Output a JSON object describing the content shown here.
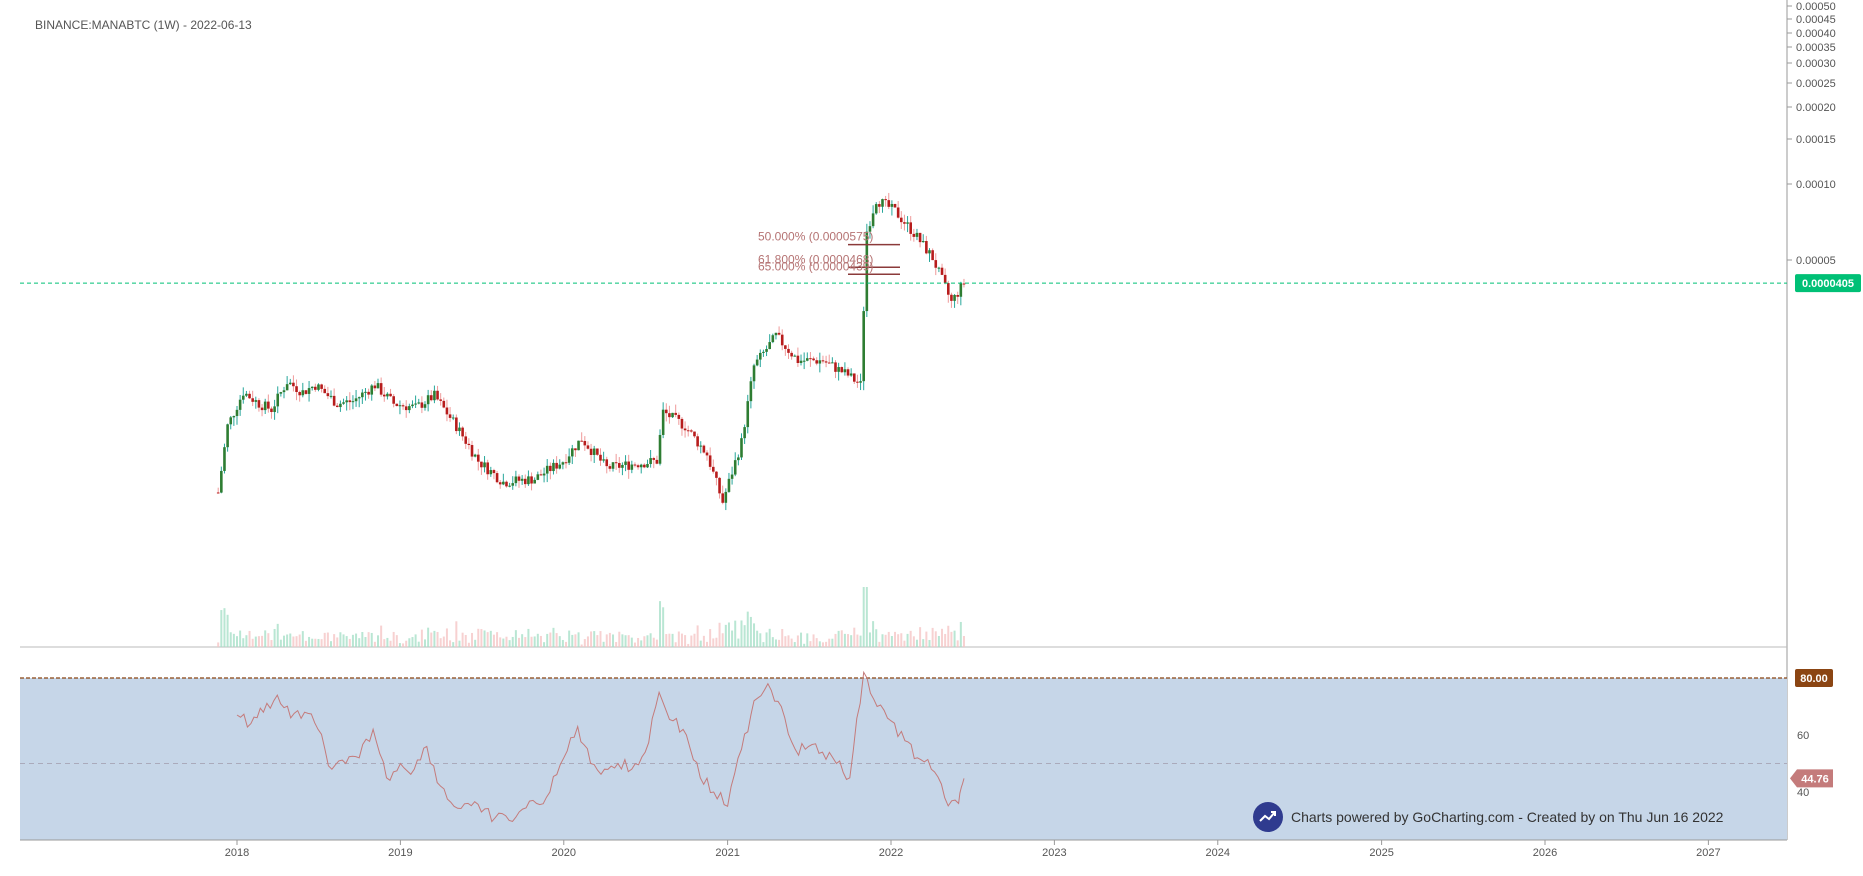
{
  "header": {
    "title": "BINANCE:MANABTC (1W) - 2022-06-13"
  },
  "watermark": {
    "text": "Charts powered by GoCharting.com - Created by  on Thu Jun 16 2022",
    "logo": "trend-up-icon"
  },
  "colors": {
    "up": "#26a69a",
    "upBody": "#2e7d32",
    "down": "#b71c1c",
    "wick_down": "#ef9a9a",
    "priceTag": "#00c076",
    "rsiZone": "#c6d6e8",
    "rsiLine": "#c47b7b",
    "ob": "#8b4513",
    "rsiTag": "#c47b7b"
  },
  "chart_data": [
    {
      "type": "candlestick",
      "title": "BINANCE:MANABTC (1W) - 2022-06-13",
      "xlabel": "",
      "ylabel": "",
      "scale": "log",
      "y_ticks": [
        "0.00050",
        "0.00045",
        "0.00040",
        "0.00035",
        "0.00030",
        "0.00025",
        "0.00020",
        "0.00015",
        "0.00010",
        "0.00005"
      ],
      "x_ticks": [
        "2018",
        "2019",
        "2020",
        "2021",
        "2022",
        "2023",
        "2024",
        "2025",
        "2026",
        "2027"
      ],
      "x_range": [
        "2017-06",
        "2027-06"
      ],
      "last_price": {
        "value": 4.05e-05,
        "label": "0.0000405"
      },
      "close_path": [
        [
          "2017-11-20",
          6e-06
        ],
        [
          "2017-12-11",
          1.1e-05
        ],
        [
          "2018-01-15",
          1.5e-05
        ],
        [
          "2018-02-19",
          1.35e-05
        ],
        [
          "2018-03-19",
          1.28e-05
        ],
        [
          "2018-04-23",
          1.65e-05
        ],
        [
          "2018-05-28",
          1.5e-05
        ],
        [
          "2018-06-25",
          1.6e-05
        ],
        [
          "2018-08-13",
          1.35e-05
        ],
        [
          "2018-09-17",
          1.38e-05
        ],
        [
          "2018-11-05",
          1.6e-05
        ],
        [
          "2018-12-17",
          1.35e-05
        ],
        [
          "2019-02-04",
          1.3e-05
        ],
        [
          "2019-03-18",
          1.45e-05
        ],
        [
          "2019-05-06",
          1.1e-05
        ],
        [
          "2019-06-24",
          8e-06
        ],
        [
          "2019-08-19",
          6.6e-06
        ],
        [
          "2019-10-28",
          6.8e-06
        ],
        [
          "2019-12-30",
          8e-06
        ],
        [
          "2020-02-10",
          9.8e-06
        ],
        [
          "2020-04-06",
          7.5e-06
        ],
        [
          "2020-06-08",
          7.8e-06
        ],
        [
          "2020-07-27",
          8e-06
        ],
        [
          "2020-08-10",
          1.25e-05
        ],
        [
          "2020-09-28",
          1.1e-05
        ],
        [
          "2020-11-16",
          8.5e-06
        ],
        [
          "2020-12-21",
          5.5e-06
        ],
        [
          "2021-02-01",
          9.5e-06
        ],
        [
          "2021-03-01",
          1.9e-05
        ],
        [
          "2021-04-19",
          2.5e-05
        ],
        [
          "2021-06-07",
          2e-05
        ],
        [
          "2021-08-02",
          2e-05
        ],
        [
          "2021-09-27",
          1.75e-05
        ],
        [
          "2021-10-25",
          1.6e-05
        ],
        [
          "2021-11-08",
          6.5e-05
        ],
        [
          "2021-11-29",
          8.7e-05
        ],
        [
          "2022-01-10",
          7.8e-05
        ],
        [
          "2022-02-21",
          6.4e-05
        ],
        [
          "2022-04-04",
          5.1e-05
        ],
        [
          "2022-05-16",
          3.4e-05
        ],
        [
          "2022-06-13",
          4.05e-05
        ]
      ],
      "volume": "shown",
      "fibonacci": [
        {
          "label": "50.000% (0.0000575)",
          "level": 5.75e-05
        },
        {
          "label": "61.800% (0.0000468)",
          "level": 4.68e-05
        },
        {
          "label": "65.000% (0.0000439)",
          "level": 4.39e-05
        }
      ]
    },
    {
      "type": "line",
      "name": "",
      "y_ticks": [
        "80.00",
        "60",
        "40"
      ],
      "ylim": [
        30,
        80
      ],
      "overbought": {
        "value": 80,
        "label": "80.00"
      },
      "midline": 50,
      "last_value": {
        "value": 44.76,
        "label": "44.76"
      },
      "points": [
        [
          "2018-01-01",
          67
        ],
        [
          "2018-02-01",
          64
        ],
        [
          "2018-03-01",
          68
        ],
        [
          "2018-04-01",
          74
        ],
        [
          "2018-05-01",
          66
        ],
        [
          "2018-06-01",
          68
        ],
        [
          "2018-07-01",
          62
        ],
        [
          "2018-08-01",
          48
        ],
        [
          "2018-09-01",
          50
        ],
        [
          "2018-10-01",
          52
        ],
        [
          "2018-11-01",
          62
        ],
        [
          "2018-12-01",
          45
        ],
        [
          "2019-01-01",
          50
        ],
        [
          "2019-02-01",
          48
        ],
        [
          "2019-03-01",
          56
        ],
        [
          "2019-04-01",
          42
        ],
        [
          "2019-05-01",
          35
        ],
        [
          "2019-06-01",
          36
        ],
        [
          "2019-07-01",
          33
        ],
        [
          "2019-08-01",
          31
        ],
        [
          "2019-09-01",
          30
        ],
        [
          "2019-10-01",
          34
        ],
        [
          "2019-11-01",
          36
        ],
        [
          "2019-12-01",
          40
        ],
        [
          "2020-01-01",
          52
        ],
        [
          "2020-02-01",
          63
        ],
        [
          "2020-03-01",
          50
        ],
        [
          "2020-04-01",
          48
        ],
        [
          "2020-05-01",
          50
        ],
        [
          "2020-06-01",
          48
        ],
        [
          "2020-07-01",
          54
        ],
        [
          "2020-08-01",
          75
        ],
        [
          "2020-09-01",
          65
        ],
        [
          "2020-10-01",
          60
        ],
        [
          "2020-11-01",
          45
        ],
        [
          "2020-12-01",
          40
        ],
        [
          "2021-01-01",
          35
        ],
        [
          "2021-02-01",
          55
        ],
        [
          "2021-03-01",
          72
        ],
        [
          "2021-04-01",
          78
        ],
        [
          "2021-05-01",
          70
        ],
        [
          "2021-06-01",
          55
        ],
        [
          "2021-07-01",
          56
        ],
        [
          "2021-08-01",
          54
        ],
        [
          "2021-09-01",
          50
        ],
        [
          "2021-10-01",
          45
        ],
        [
          "2021-11-01",
          82
        ],
        [
          "2021-12-01",
          70
        ],
        [
          "2022-01-01",
          65
        ],
        [
          "2022-02-01",
          58
        ],
        [
          "2022-03-01",
          52
        ],
        [
          "2022-04-01",
          48
        ],
        [
          "2022-05-01",
          38
        ],
        [
          "2022-06-01",
          36
        ],
        [
          "2022-06-13",
          44.76
        ]
      ]
    }
  ]
}
